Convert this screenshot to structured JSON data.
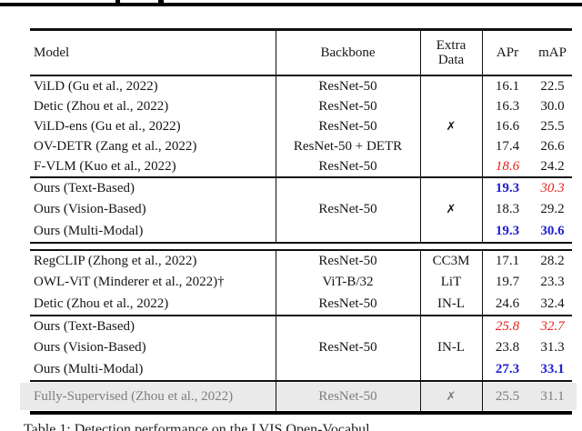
{
  "colors": {
    "best": "#2020d7",
    "second": "#e8201c",
    "gray_row_bg": "#eaeaea",
    "gray_row_text": "#7d7d7d"
  },
  "glyphs": {
    "no_extra_data": "✗"
  },
  "caption": "Table 1: Detection performance on the LVIS Open-Vocabul",
  "table": {
    "header": {
      "model": "Model",
      "backbone": "Backbone",
      "extra_line1": "Extra",
      "extra_line2": "Data",
      "apr": "APr",
      "map": "mAP"
    },
    "groups": [
      {
        "kind": "g1",
        "gray": false,
        "after": "rule",
        "rows": [
          {
            "model": "ViLD (Gu et al., 2022)",
            "backbone": "ResNet-50",
            "extra": "",
            "apr": "16.1",
            "apr_style": "",
            "map": "22.5",
            "map_style": ""
          },
          {
            "model": "Detic (Zhou et al., 2022)",
            "backbone": "ResNet-50",
            "extra": "",
            "apr": "16.3",
            "apr_style": "",
            "map": "30.0",
            "map_style": ""
          },
          {
            "model": "ViLD-ens (Gu et al., 2022)",
            "backbone": "ResNet-50",
            "extra": "✗",
            "apr": "16.6",
            "apr_style": "",
            "map": "25.5",
            "map_style": ""
          },
          {
            "model": "OV-DETR (Zang et al., 2022)",
            "backbone": "ResNet-50 + DETR",
            "extra": "",
            "apr": "17.4",
            "apr_style": "",
            "map": "26.6",
            "map_style": ""
          },
          {
            "model": "F-VLM (Kuo et al., 2022)",
            "backbone": "ResNet-50",
            "extra": "",
            "apr": "18.6",
            "apr_style": "second",
            "map": "24.2",
            "map_style": ""
          }
        ]
      },
      {
        "kind": "g3",
        "gray": false,
        "after": "double",
        "rows": [
          {
            "model": "Ours (Text-Based)",
            "backbone": "",
            "extra": "",
            "apr": "19.3",
            "apr_style": "best",
            "map": "30.3",
            "map_style": "second"
          },
          {
            "model": "Ours (Vision-Based)",
            "backbone": "ResNet-50",
            "extra": "✗",
            "apr": "18.3",
            "apr_style": "",
            "map": "29.2",
            "map_style": ""
          },
          {
            "model": "Ours (Multi-Modal)",
            "backbone": "",
            "extra": "",
            "apr": "19.3",
            "apr_style": "best",
            "map": "30.6",
            "map_style": "best"
          }
        ]
      },
      {
        "kind": "g3",
        "gray": false,
        "after": "rule",
        "rows": [
          {
            "model": "RegCLIP (Zhong et al., 2022)",
            "backbone": "ResNet-50",
            "extra": "CC3M",
            "apr": "17.1",
            "apr_style": "",
            "map": "28.2",
            "map_style": ""
          },
          {
            "model": "OWL-ViT (Minderer et al., 2022)†",
            "backbone": "ViT-B/32",
            "extra": "LiT",
            "apr": "19.7",
            "apr_style": "",
            "map": "23.3",
            "map_style": ""
          },
          {
            "model": "Detic (Zhou et al., 2022)",
            "backbone": "ResNet-50",
            "extra": "IN-L",
            "apr": "24.6",
            "apr_style": "",
            "map": "32.4",
            "map_style": ""
          }
        ]
      },
      {
        "kind": "g3",
        "gray": false,
        "after": "rule",
        "rows": [
          {
            "model": "Ours (Text-Based)",
            "backbone": "",
            "extra": "",
            "apr": "25.8",
            "apr_style": "second",
            "map": "32.7",
            "map_style": "second"
          },
          {
            "model": "Ours (Vision-Based)",
            "backbone": "ResNet-50",
            "extra": "IN-L",
            "apr": "23.8",
            "apr_style": "",
            "map": "31.3",
            "map_style": ""
          },
          {
            "model": "Ours (Multi-Modal)",
            "backbone": "",
            "extra": "",
            "apr": "27.3",
            "apr_style": "best",
            "map": "33.1",
            "map_style": "best"
          }
        ]
      },
      {
        "kind": "gray-g",
        "gray": true,
        "after": "thick",
        "rows": [
          {
            "model": "Fully-Supervised (Zhou et al., 2022)",
            "backbone": "ResNet-50",
            "extra": "✗",
            "apr": "25.5",
            "apr_style": "",
            "map": "31.1",
            "map_style": ""
          }
        ]
      }
    ]
  }
}
